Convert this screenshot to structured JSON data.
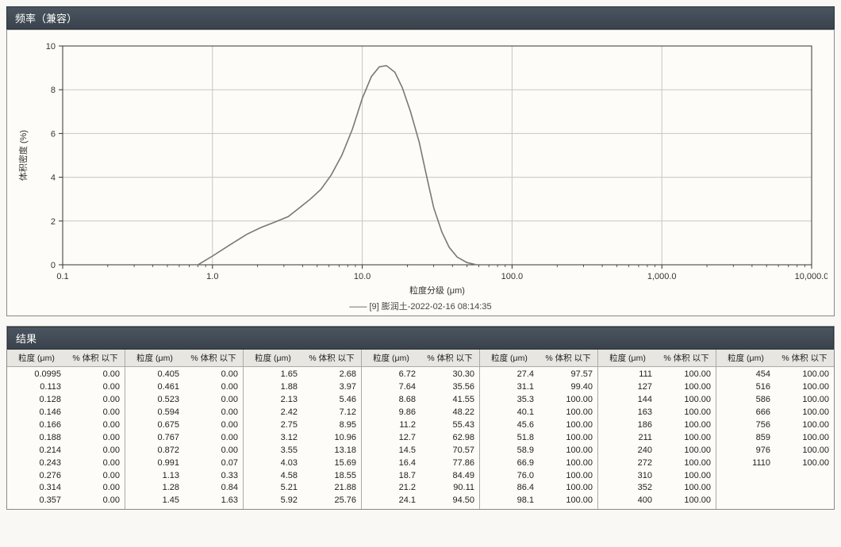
{
  "headers": {
    "chart_title": "频率（兼容）",
    "results_title": "结果"
  },
  "chart": {
    "type": "line",
    "xlabel": "粒度分级 (μm)",
    "ylabel": "体积密度 (%)",
    "label_fontsize": 11,
    "x_scale": "log",
    "xlim": [
      0.1,
      10000
    ],
    "x_ticks": [
      0.1,
      1.0,
      10.0,
      100.0,
      1000.0,
      10000.0
    ],
    "x_tick_labels": [
      "0.1",
      "1.0",
      "10.0",
      "100.0",
      "1,000.0",
      "10,000.0"
    ],
    "ylim": [
      0,
      10
    ],
    "y_ticks": [
      0,
      2,
      4,
      6,
      8,
      10
    ],
    "grid_color": "#c8c6c0",
    "axis_color": "#333333",
    "background_color": "#fdfcf8",
    "line_color": "#7a7872",
    "line_width": 1.6,
    "legend_text": "[9] 膨润土-2022-02-16 08:14:35",
    "legend_prefix": "——",
    "series": {
      "x": [
        0.8,
        1.0,
        1.3,
        1.7,
        2.1,
        2.6,
        3.2,
        3.8,
        4.5,
        5.3,
        6.2,
        7.3,
        8.6,
        10.0,
        11.5,
        13.0,
        14.5,
        16.5,
        18.5,
        21.0,
        24.0,
        27.0,
        30.0,
        34.0,
        38.0,
        43.0,
        50.0,
        58.0
      ],
      "y": [
        0.0,
        0.4,
        0.9,
        1.4,
        1.7,
        1.95,
        2.2,
        2.6,
        3.0,
        3.45,
        4.1,
        5.0,
        6.2,
        7.6,
        8.6,
        9.05,
        9.1,
        8.8,
        8.1,
        7.0,
        5.6,
        4.0,
        2.6,
        1.5,
        0.8,
        0.35,
        0.1,
        0.0
      ]
    }
  },
  "table": {
    "col_header_a": "粒度 (μm)",
    "col_header_b": "% 体积 以下",
    "groups": [
      {
        "rows": [
          [
            "0.0995",
            "0.00"
          ],
          [
            "0.113",
            "0.00"
          ],
          [
            "0.128",
            "0.00"
          ],
          [
            "0.146",
            "0.00"
          ],
          [
            "0.166",
            "0.00"
          ],
          [
            "0.188",
            "0.00"
          ],
          [
            "0.214",
            "0.00"
          ],
          [
            "0.243",
            "0.00"
          ],
          [
            "0.276",
            "0.00"
          ],
          [
            "0.314",
            "0.00"
          ],
          [
            "0.357",
            "0.00"
          ]
        ]
      },
      {
        "rows": [
          [
            "0.405",
            "0.00"
          ],
          [
            "0.461",
            "0.00"
          ],
          [
            "0.523",
            "0.00"
          ],
          [
            "0.594",
            "0.00"
          ],
          [
            "0.675",
            "0.00"
          ],
          [
            "0.767",
            "0.00"
          ],
          [
            "0.872",
            "0.00"
          ],
          [
            "0.991",
            "0.07"
          ],
          [
            "1.13",
            "0.33"
          ],
          [
            "1.28",
            "0.84"
          ],
          [
            "1.45",
            "1.63"
          ]
        ]
      },
      {
        "rows": [
          [
            "1.65",
            "2.68"
          ],
          [
            "1.88",
            "3.97"
          ],
          [
            "2.13",
            "5.46"
          ],
          [
            "2.42",
            "7.12"
          ],
          [
            "2.75",
            "8.95"
          ],
          [
            "3.12",
            "10.96"
          ],
          [
            "3.55",
            "13.18"
          ],
          [
            "4.03",
            "15.69"
          ],
          [
            "4.58",
            "18.55"
          ],
          [
            "5.21",
            "21.88"
          ],
          [
            "5.92",
            "25.76"
          ]
        ]
      },
      {
        "rows": [
          [
            "6.72",
            "30.30"
          ],
          [
            "7.64",
            "35.56"
          ],
          [
            "8.68",
            "41.55"
          ],
          [
            "9.86",
            "48.22"
          ],
          [
            "11.2",
            "55.43"
          ],
          [
            "12.7",
            "62.98"
          ],
          [
            "14.5",
            "70.57"
          ],
          [
            "16.4",
            "77.86"
          ],
          [
            "18.7",
            "84.49"
          ],
          [
            "21.2",
            "90.11"
          ],
          [
            "24.1",
            "94.50"
          ]
        ]
      },
      {
        "rows": [
          [
            "27.4",
            "97.57"
          ],
          [
            "31.1",
            "99.40"
          ],
          [
            "35.3",
            "100.00"
          ],
          [
            "40.1",
            "100.00"
          ],
          [
            "45.6",
            "100.00"
          ],
          [
            "51.8",
            "100.00"
          ],
          [
            "58.9",
            "100.00"
          ],
          [
            "66.9",
            "100.00"
          ],
          [
            "76.0",
            "100.00"
          ],
          [
            "86.4",
            "100.00"
          ],
          [
            "98.1",
            "100.00"
          ]
        ]
      },
      {
        "rows": [
          [
            "111",
            "100.00"
          ],
          [
            "127",
            "100.00"
          ],
          [
            "144",
            "100.00"
          ],
          [
            "163",
            "100.00"
          ],
          [
            "186",
            "100.00"
          ],
          [
            "211",
            "100.00"
          ],
          [
            "240",
            "100.00"
          ],
          [
            "272",
            "100.00"
          ],
          [
            "310",
            "100.00"
          ],
          [
            "352",
            "100.00"
          ],
          [
            "400",
            "100.00"
          ]
        ]
      },
      {
        "rows": [
          [
            "454",
            "100.00"
          ],
          [
            "516",
            "100.00"
          ],
          [
            "586",
            "100.00"
          ],
          [
            "666",
            "100.00"
          ],
          [
            "756",
            "100.00"
          ],
          [
            "859",
            "100.00"
          ],
          [
            "976",
            "100.00"
          ],
          [
            "1110",
            "100.00"
          ]
        ]
      }
    ]
  }
}
